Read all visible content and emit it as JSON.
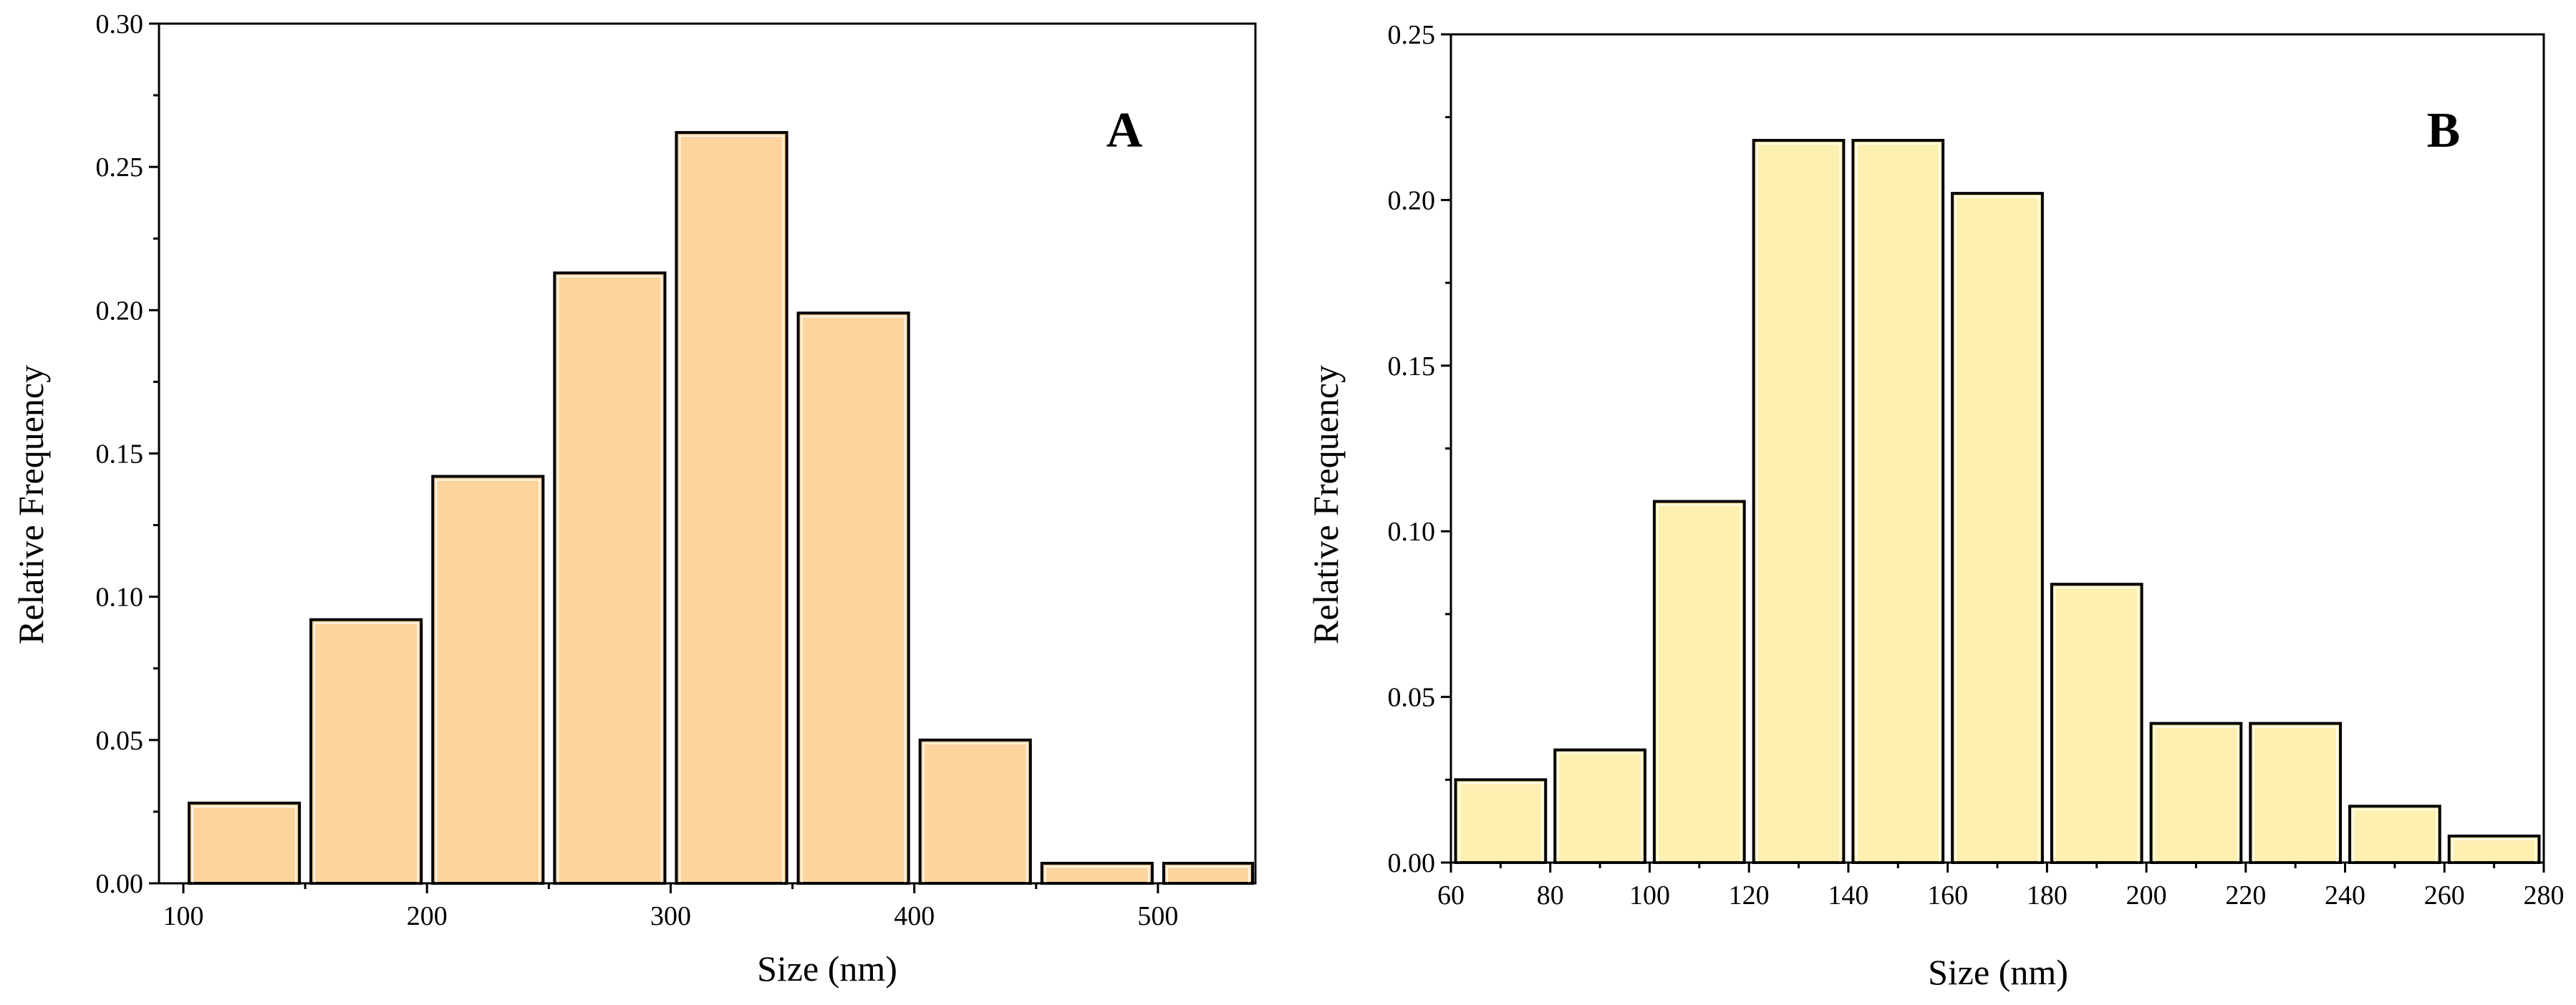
{
  "chart_data": [
    {
      "type": "bar",
      "panel_label": "A",
      "xlabel": "Size (nm)",
      "ylabel": "Relative Frequency",
      "xlim": [
        90,
        540
      ],
      "ylim": [
        0,
        0.3
      ],
      "xticks": [
        "100",
        "200",
        "300",
        "400",
        "500"
      ],
      "yticks": [
        "0.00",
        "0.05",
        "0.10",
        "0.15",
        "0.20",
        "0.25",
        "0.30"
      ],
      "bar_color": "#fdd49e",
      "bars": [
        {
          "x0": 100,
          "x1": 150,
          "value": 0.028
        },
        {
          "x0": 150,
          "x1": 200,
          "value": 0.092
        },
        {
          "x0": 200,
          "x1": 250,
          "value": 0.142
        },
        {
          "x0": 250,
          "x1": 300,
          "value": 0.213
        },
        {
          "x0": 300,
          "x1": 350,
          "value": 0.262
        },
        {
          "x0": 350,
          "x1": 400,
          "value": 0.199
        },
        {
          "x0": 400,
          "x1": 450,
          "value": 0.05
        },
        {
          "x0": 450,
          "x1": 500,
          "value": 0.007
        },
        {
          "x0": 500,
          "x1": 550,
          "value": 0.007
        }
      ]
    },
    {
      "type": "bar",
      "panel_label": "B",
      "xlabel": "Size (nm)",
      "ylabel": "Relative Frequency",
      "xlim": [
        60,
        280
      ],
      "ylim": [
        0,
        0.25
      ],
      "xticks": [
        "60",
        "80",
        "100",
        "120",
        "140",
        "160",
        "180",
        "200",
        "220",
        "240",
        "260",
        "280"
      ],
      "yticks": [
        "0.00",
        "0.05",
        "0.10",
        "0.15",
        "0.20",
        "0.25"
      ],
      "bar_color": "#fdf0b0",
      "bars": [
        {
          "x0": 60,
          "x1": 80,
          "value": 0.025
        },
        {
          "x0": 80,
          "x1": 100,
          "value": 0.034
        },
        {
          "x0": 100,
          "x1": 120,
          "value": 0.109
        },
        {
          "x0": 120,
          "x1": 140,
          "value": 0.218
        },
        {
          "x0": 140,
          "x1": 160,
          "value": 0.218
        },
        {
          "x0": 160,
          "x1": 180,
          "value": 0.202
        },
        {
          "x0": 180,
          "x1": 200,
          "value": 0.084
        },
        {
          "x0": 200,
          "x1": 220,
          "value": 0.042
        },
        {
          "x0": 220,
          "x1": 240,
          "value": 0.042
        },
        {
          "x0": 240,
          "x1": 260,
          "value": 0.017
        },
        {
          "x0": 260,
          "x1": 280,
          "value": 0.008
        }
      ]
    }
  ]
}
